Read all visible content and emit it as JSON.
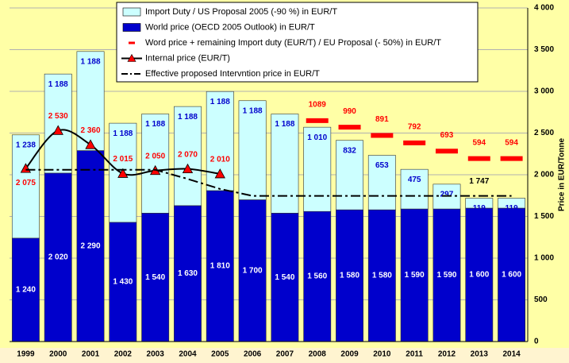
{
  "chart_data": {
    "type": "bar",
    "stacked": true,
    "categories": [
      "1999",
      "2000",
      "2001",
      "2002",
      "2003",
      "2004",
      "2005",
      "2006",
      "2007",
      "2008",
      "2009",
      "2010",
      "2011",
      "2012",
      "2013",
      "2014"
    ],
    "series": [
      {
        "name": "World price (OECD 2005 Outlook) in EUR/T",
        "type": "bar",
        "color": "#0000cc",
        "label_color": "#ffffff",
        "values": [
          1240,
          2020,
          2290,
          1430,
          1540,
          1630,
          1810,
          1700,
          1540,
          1560,
          1580,
          1580,
          1590,
          1590,
          1600,
          1600
        ],
        "value_labels": [
          "1 240",
          "2 020",
          "2 290",
          "1 430",
          "1 540",
          "1 630",
          "1 810",
          "1 700",
          "1 540",
          "1 560",
          "1 580",
          "1 580",
          "1 590",
          "1 590",
          "1 600",
          "1 600"
        ]
      },
      {
        "name": "Import Duty / US Proposal 2005 (-90 %) in EUR/T",
        "type": "bar",
        "color": "#ccffff",
        "label_color": "#0000cc",
        "values": [
          1238,
          1188,
          1188,
          1188,
          1188,
          1188,
          1188,
          1188,
          1188,
          1010,
          832,
          653,
          475,
          297,
          119,
          119
        ],
        "value_labels": [
          "1 238",
          "1 188",
          "1 188",
          "1 188",
          "1 188",
          "1 188",
          "1 188",
          "1 188",
          "1 188",
          "1 010",
          "832",
          "653",
          "475",
          "297",
          "119",
          "119"
        ]
      },
      {
        "name": "Word price + remaining Import duty (EUR/T) / EU Proposal (- 50%) in EUR/T",
        "type": "dash",
        "color": "#ff0000",
        "stack_on": 0,
        "values": [
          null,
          null,
          null,
          null,
          null,
          null,
          null,
          null,
          null,
          1089,
          990,
          891,
          792,
          693,
          594,
          594
        ]
      },
      {
        "name": "Internal price (EUR/T)",
        "type": "line",
        "color": "#000000",
        "marker_color": "#ff0000",
        "label_color": "#ff0000",
        "values": [
          2075,
          2530,
          2360,
          2015,
          2050,
          2070,
          2010,
          null,
          null,
          null,
          null,
          null,
          null,
          null,
          null,
          null
        ],
        "value_labels": [
          "2 075",
          "2 530",
          "2 360",
          "2 015",
          "2 050",
          "2 070",
          "2 010",
          null,
          null,
          null,
          null,
          null,
          null,
          null,
          null,
          null
        ]
      },
      {
        "name": "Effective proposed Intervntion price in EUR/T",
        "type": "dashdot",
        "color": "#000000",
        "label_color": "#000000",
        "values": [
          2060,
          2060,
          2060,
          2060,
          2060,
          1950,
          1830,
          1747,
          1747,
          1747,
          1747,
          1747,
          1747,
          1747,
          1747,
          1747
        ],
        "value_labels": [
          null,
          null,
          null,
          null,
          null,
          null,
          null,
          null,
          null,
          null,
          null,
          null,
          null,
          null,
          "1 747",
          null
        ]
      }
    ],
    "ylim": [
      0,
      4000
    ],
    "yticks": [
      0,
      500,
      {
        "value": 1000,
        "label": "1 000"
      },
      {
        "value": 1500,
        "label": "1 500"
      },
      {
        "value": 2000,
        "label": "2 000"
      },
      {
        "value": 2500,
        "label": "2 500"
      },
      {
        "value": 3000,
        "label": "3 000"
      },
      {
        "value": 3500,
        "label": "3 500"
      },
      {
        "value": 4000,
        "label": "4 000"
      }
    ],
    "y_axis_label": "Price in EUR/Tonne",
    "grid": true
  }
}
